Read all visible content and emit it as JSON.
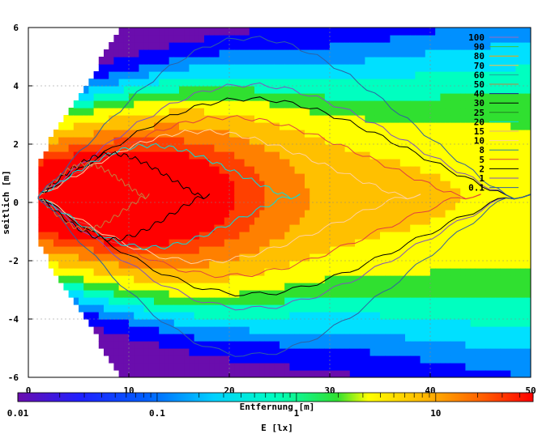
{
  "chart_data": {
    "type": "heatmap",
    "xlabel": "Entfernung [m]",
    "ylabel": "seitlich [m]",
    "xlim": [
      0,
      50
    ],
    "ylim": [
      -6,
      6
    ],
    "x_ticks": [
      0,
      10,
      20,
      30,
      40,
      50
    ],
    "y_ticks": [
      -6,
      -4,
      -2,
      0,
      2,
      4,
      6
    ],
    "grid": true,
    "legend_position": "top-right",
    "colorbar": {
      "label": "E [lx]",
      "scale": "log",
      "range": [
        0.01,
        50
      ],
      "ticks": [
        "0.01",
        "0.1",
        "1",
        "10"
      ],
      "colors": [
        "#6a0dad",
        "#0000ff",
        "#00c0ff",
        "#00ffc0",
        "#30e030",
        "#ffff00",
        "#ffb000",
        "#ff6000",
        "#ff0000"
      ]
    },
    "contours": [
      {
        "level": "100",
        "color": "#9a6ac0"
      },
      {
        "level": "90",
        "color": "#40c040"
      },
      {
        "level": "80",
        "color": "#ffa000"
      },
      {
        "level": "70",
        "color": "#ffc040"
      },
      {
        "level": "60",
        "color": "#20a0a0"
      },
      {
        "level": "50",
        "color": "#c08040"
      },
      {
        "level": "40",
        "color": "#202080"
      },
      {
        "level": "30",
        "color": "#000000"
      },
      {
        "level": "25",
        "color": "#208020"
      },
      {
        "level": "20",
        "color": "#00e0e0"
      },
      {
        "level": "15",
        "color": "#e0b080"
      },
      {
        "level": "10",
        "color": "#ffd0a0"
      },
      {
        "level": "8",
        "color": "#2080a0"
      },
      {
        "level": "5",
        "color": "#e04040"
      },
      {
        "level": "2",
        "color": "#000000"
      },
      {
        "level": "1",
        "color": "#8050c0"
      },
      {
        "level": "0.1",
        "color": "#3060a0"
      }
    ],
    "field_shape": {
      "hot_center": [
        8,
        0.2
      ],
      "contour_extents_x": {
        "0.1": 50,
        "1": 50,
        "2": 50,
        "5": 45,
        "10": 39,
        "20": 27,
        "30": 18,
        "50": 12
      }
    }
  }
}
